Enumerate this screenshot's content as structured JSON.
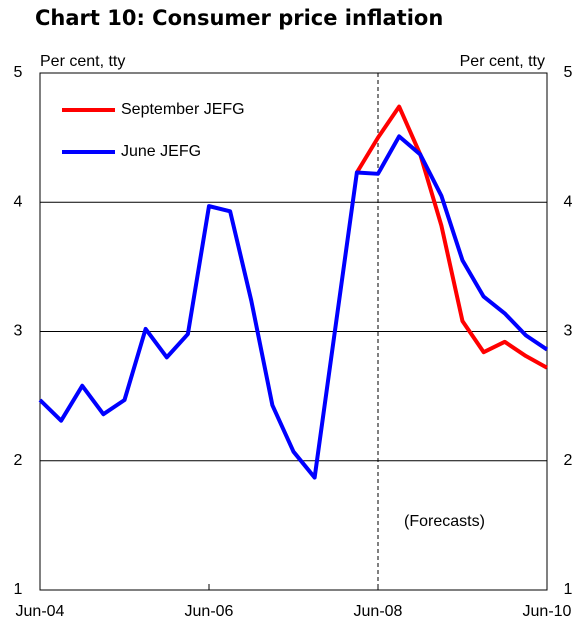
{
  "chart_data": {
    "type": "line",
    "title": "Chart 10: Consumer price inflation",
    "y_label": "Per cent, tty",
    "y2_label": "Per cent, tty",
    "annotation": "(Forecasts)",
    "categories": [
      "Jun-04",
      null,
      null,
      null,
      null,
      null,
      null,
      null,
      "Jun-06",
      null,
      null,
      null,
      null,
      null,
      null,
      null,
      "Jun-08",
      null,
      null,
      null,
      null,
      null,
      null,
      null,
      "Jun-10"
    ],
    "series": [
      {
        "name": "September JEFG",
        "color": "#ff0000",
        "values": [
          null,
          null,
          null,
          null,
          null,
          null,
          null,
          null,
          null,
          null,
          null,
          null,
          null,
          null,
          null,
          4.23,
          4.5,
          4.74,
          4.37,
          3.82,
          3.08,
          2.84,
          2.92,
          2.81,
          2.72
        ]
      },
      {
        "name": "June JEFG",
        "color": "#0000ff",
        "values": [
          2.47,
          2.31,
          2.58,
          2.36,
          2.47,
          3.02,
          2.8,
          2.98,
          3.97,
          3.93,
          3.24,
          2.43,
          2.07,
          1.87,
          3.05,
          4.23,
          4.22,
          4.51,
          4.37,
          4.05,
          3.55,
          3.27,
          3.14,
          2.97,
          2.86
        ]
      }
    ],
    "ylim": [
      1,
      5
    ],
    "yticks": [
      1,
      2,
      3,
      4,
      5
    ],
    "y2lim": [
      1,
      5
    ],
    "y2ticks": [
      1,
      2,
      3,
      4,
      5
    ],
    "grid": true
  }
}
